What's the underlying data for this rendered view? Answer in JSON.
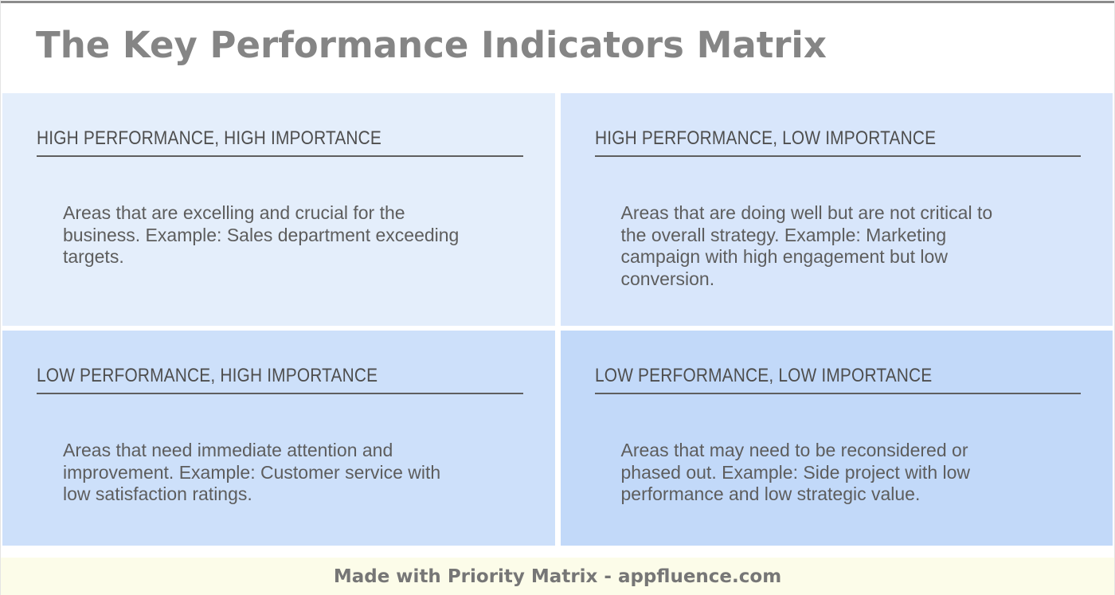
{
  "page": {
    "title": "The Key Performance Indicators Matrix"
  },
  "matrix": {
    "quadrants": [
      {
        "key": "high-performance-high-importance",
        "heading": "HIGH PERFORMANCE, HIGH IMPORTANCE",
        "body": "Areas that are excelling and crucial for the\nbusiness. Example: Sales department exceeding\ntargets.",
        "bg": "#e4eefb"
      },
      {
        "key": "high-performance-low-importance",
        "heading": "HIGH PERFORMANCE, LOW IMPORTANCE",
        "body": "Areas that are doing well but are not critical to\nthe overall strategy. Example: Marketing\ncampaign with high engagement but low\nconversion.",
        "bg": "#d8e6fb"
      },
      {
        "key": "low-performance-high-importance",
        "heading": "LOW PERFORMANCE, HIGH IMPORTANCE",
        "body": "Areas that need immediate attention and\nimprovement. Example: Customer service with\nlow satisfaction ratings.",
        "bg": "#cde0fa"
      },
      {
        "key": "low-performance-low-importance",
        "heading": "LOW PERFORMANCE, LOW IMPORTANCE",
        "body": "Areas that may need to be reconsidered or\nphased out. Example: Side project with low\nperformance and low strategic value.",
        "bg": "#c2d9f9"
      }
    ]
  },
  "footer": {
    "credit": "Made with Priority Matrix - appfluence.com",
    "bg": "#fcfce9"
  },
  "colors": {
    "top_border": "#8c8c8c",
    "title_text": "#858585",
    "heading_text": "#4e4e4e",
    "body_text": "#5d5d5d",
    "underline": "#5f5f5f",
    "footer_text": "#767676"
  }
}
